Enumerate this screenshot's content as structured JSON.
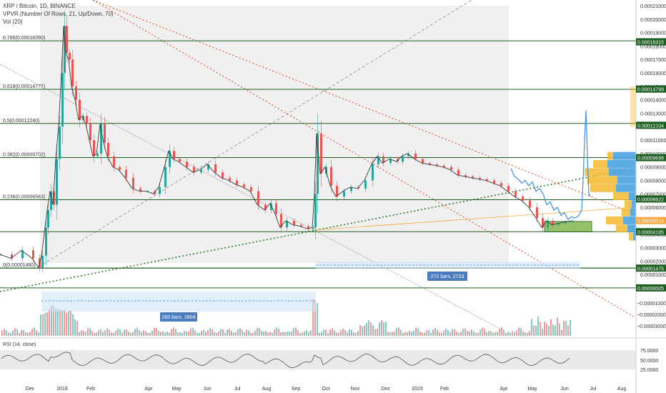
{
  "header": {
    "title": "XRP / Bitcoin, 1D, BINANCE",
    "indicator_1": "VPVR (Number Of Rows, 21, Up/Down, 70)",
    "indicator_2": "Vol (20)"
  },
  "chart_data": {
    "type": "candlestick",
    "x_axis_labels": [
      "Dec",
      "2018",
      "Feb",
      "Apr",
      "May",
      "Jun",
      "Jul",
      "Aug",
      "Sep",
      "Oct",
      "Nov",
      "Dec",
      "2019",
      "Feb",
      "Apr",
      "May",
      "Jun",
      "Jul",
      "Aug"
    ],
    "price_axis_ticks": [
      "0.00021000",
      "0.00020000",
      "0.00019000",
      "0.00018000",
      "0.00017000",
      "0.00016000",
      "0.00015000",
      "0.00014000",
      "0.00013000",
      "0.00012000",
      "0.00011000",
      "0.00010000",
      "0.00009000",
      "0.00008000",
      "0.00007000",
      "0.00006000",
      "0.00005000",
      "0.00004000",
      "0.00003000",
      "0.00002000",
      "0.00001000",
      "0.00000000"
    ],
    "volume_axis_ticks": [
      "−0.00001000",
      "−0.00002000",
      "−0.00003000"
    ],
    "rsi": {
      "title": "RSI (14, close)",
      "ticks": [
        "75.0000",
        "50.0000",
        "25.0000"
      ]
    },
    "fib_levels": [
      {
        "label": "0.786(0.00018390)",
        "value": 0.0001839
      },
      {
        "label": "0.618(0.00014777)",
        "value": 0.00014777
      },
      {
        "label": "0.5(0.00012240)",
        "value": 0.0001224
      },
      {
        "label": "0.382(0.00009702)",
        "value": 9.702e-05
      },
      {
        "label": "0.236(0.00006563)",
        "value": 6.563e-05
      },
      {
        "label": "0(0.00001480)",
        "value": 1.48e-05
      }
    ],
    "price_tags": [
      {
        "label": "0.00018315",
        "value": 0.00018315,
        "color": "#1b5e20"
      },
      {
        "label": "0.00014799",
        "value": 0.00014799,
        "color": "#1b5e20"
      },
      {
        "label": "0.00012104",
        "value": 0.00012104,
        "color": "#1b5e20"
      },
      {
        "label": "0.00009698",
        "value": 9.698e-05,
        "color": "#1b5e20"
      },
      {
        "label": "0.00006622",
        "value": 6.622e-05,
        "color": "#1b5e20"
      },
      {
        "label": "0.00005014",
        "value": 5.014e-05,
        "color": "#f7a93b"
      },
      {
        "label": "0.00004185",
        "value": 4.185e-05,
        "color": "#1b5e20"
      },
      {
        "label": "0.00001475",
        "value": 1.475e-05,
        "color": "#1b5e20"
      },
      {
        "label": "0.00000005",
        "value": 5e-08,
        "color": "#1b5e20"
      }
    ],
    "measure_boxes": [
      {
        "label": "280 bars, 280d"
      },
      {
        "label": "272 bars, 272d"
      }
    ],
    "price_series": [
      [
        0,
        2.5e-05
      ],
      [
        15,
        2.2e-05
      ],
      [
        30,
        2.8e-05
      ],
      [
        45,
        2.2e-05
      ],
      [
        54,
        1.5e-05
      ],
      [
        58,
        2.4e-05
      ],
      [
        63,
        4.5e-05
      ],
      [
        66,
        5.8e-05
      ],
      [
        70,
        7.2e-05
      ],
      [
        74,
        6.2e-05
      ],
      [
        78,
        9.6e-05
      ],
      [
        82,
        0.00012
      ],
      [
        86,
        0.00016
      ],
      [
        89,
        0.000195
      ],
      [
        92,
        0.000175
      ],
      [
        96,
        0.00017
      ],
      [
        100,
        0.00015
      ],
      [
        105,
        0.00014
      ],
      [
        110,
        0.000125
      ],
      [
        115,
        0.000128
      ],
      [
        120,
        0.000122
      ],
      [
        125,
        0.00011
      ],
      [
        130,
        9.8e-05
      ],
      [
        135,
        0.0001
      ],
      [
        140,
        0.000122
      ],
      [
        145,
        0.000108
      ],
      [
        150,
        9.8e-05
      ],
      [
        158,
        9e-05
      ],
      [
        166,
        8.8e-05
      ],
      [
        175,
        8.2e-05
      ],
      [
        185,
        7.4e-05
      ],
      [
        195,
        7.2e-05
      ],
      [
        205,
        7.2e-05
      ],
      [
        215,
        7e-05
      ],
      [
        222,
        7.5e-05
      ],
      [
        230,
        9e-05
      ],
      [
        236,
        0.000102
      ],
      [
        242,
        9.6e-05
      ],
      [
        250,
        9.4e-05
      ],
      [
        260,
        9e-05
      ],
      [
        270,
        8.6e-05
      ],
      [
        280,
        8.8e-05
      ],
      [
        290,
        9.2e-05
      ],
      [
        300,
        8.6e-05
      ],
      [
        310,
        8.2e-05
      ],
      [
        320,
        8e-05
      ],
      [
        330,
        7.7e-05
      ],
      [
        340,
        7.5e-05
      ],
      [
        350,
        7.2e-05
      ],
      [
        360,
        6.2e-05
      ],
      [
        370,
        5.8e-05
      ],
      [
        378,
        6.3e-05
      ],
      [
        385,
        5.5e-05
      ],
      [
        392,
        4.5e-05
      ],
      [
        400,
        5e-05
      ],
      [
        410,
        4.7e-05
      ],
      [
        420,
        4.6e-05
      ],
      [
        430,
        4.4e-05
      ],
      [
        437,
        4.5e-05
      ],
      [
        440,
        7e-05
      ],
      [
        443,
        0.000115
      ],
      [
        448,
        8.5e-05
      ],
      [
        455,
        9e-05
      ],
      [
        462,
        7.6e-05
      ],
      [
        470,
        6.8e-05
      ],
      [
        480,
        7.2e-05
      ],
      [
        490,
        7.5e-05
      ],
      [
        500,
        7.4e-05
      ],
      [
        510,
        8e-05
      ],
      [
        520,
        9.2e-05
      ],
      [
        528,
        9.8e-05
      ],
      [
        535,
        9.3e-05
      ],
      [
        545,
        9.6e-05
      ],
      [
        555,
        9.4e-05
      ],
      [
        562,
        9.8e-05
      ],
      [
        570,
        0.0001
      ],
      [
        580,
        9.6e-05
      ],
      [
        590,
        9.3e-05
      ],
      [
        600,
        9.2e-05
      ],
      [
        610,
        9.1e-05
      ],
      [
        620,
        9e-05
      ],
      [
        630,
        8.8e-05
      ],
      [
        640,
        8.4e-05
      ],
      [
        650,
        8.3e-05
      ],
      [
        660,
        8.2e-05
      ],
      [
        670,
        8.1e-05
      ],
      [
        680,
        8e-05
      ],
      [
        690,
        7.8e-05
      ],
      [
        700,
        7.6e-05
      ],
      [
        710,
        7.2e-05
      ],
      [
        720,
        6.8e-05
      ],
      [
        730,
        6.5e-05
      ],
      [
        740,
        6e-05
      ],
      [
        750,
        5.2e-05
      ],
      [
        758,
        4.5e-05
      ],
      [
        765,
        5e-05
      ],
      [
        772,
        4.7e-05
      ],
      [
        780,
        4.8e-05
      ],
      [
        790,
        4.9e-05
      ],
      [
        800,
        5e-05
      ]
    ],
    "projection_series": [
      [
        715,
        8.9e-05
      ],
      [
        720,
        8.3e-05
      ],
      [
        725,
        8.1e-05
      ],
      [
        730,
        7.8e-05
      ],
      [
        735,
        8e-05
      ],
      [
        740,
        7.6e-05
      ],
      [
        745,
        7.9e-05
      ],
      [
        750,
        7.2e-05
      ],
      [
        755,
        7.4e-05
      ],
      [
        760,
        7e-05
      ],
      [
        765,
        6.2e-05
      ],
      [
        770,
        6.4e-05
      ],
      [
        775,
        5.8e-05
      ],
      [
        780,
        6e-05
      ],
      [
        785,
        5.4e-05
      ],
      [
        790,
        5.6e-05
      ],
      [
        795,
        5.1e-05
      ],
      [
        800,
        5.3e-05
      ],
      [
        805,
        5.2e-05
      ],
      [
        810,
        5.4e-05
      ],
      [
        814,
        5.8e-05
      ],
      [
        816,
        8e-05
      ],
      [
        818,
        0.00011
      ],
      [
        820,
        0.000132
      ],
      [
        822,
        9.8e-05
      ],
      [
        824,
        7e-05
      ],
      [
        826,
        6.8e-05
      ]
    ],
    "x_range": [
      0,
      880
    ],
    "y_range": [
      0.0,
      0.00021
    ]
  }
}
